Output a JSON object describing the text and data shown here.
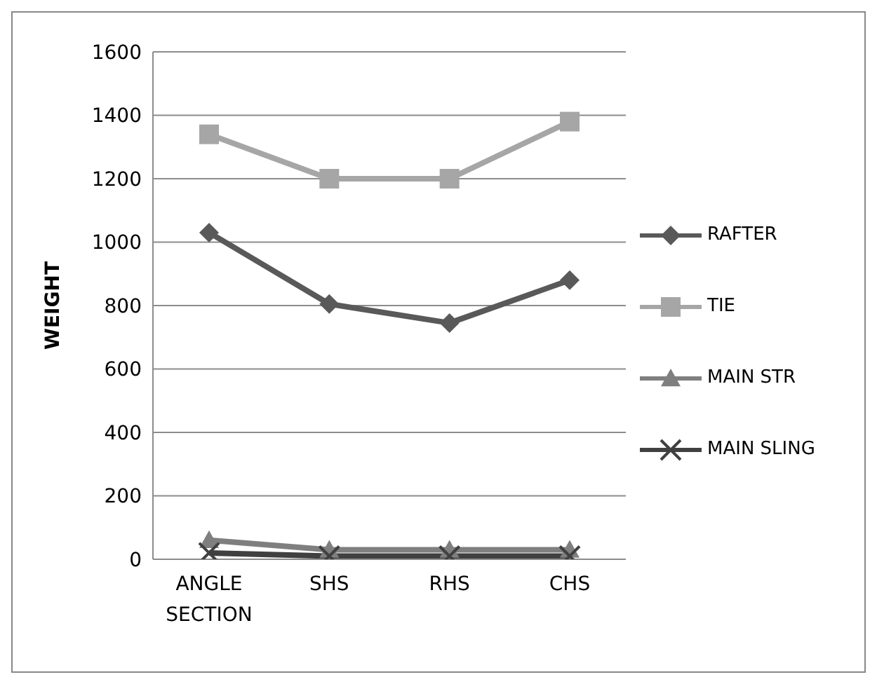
{
  "chart_data": {
    "type": "line",
    "ylabel": "WEIGHT",
    "categories": [
      "ANGLE SECTION",
      "SHS",
      "RHS",
      "CHS"
    ],
    "series": [
      {
        "name": "RAFTER",
        "color": "#595959",
        "marker": "diamond",
        "values": [
          1030,
          805,
          745,
          880
        ]
      },
      {
        "name": "TIE",
        "color": "#a6a6a6",
        "marker": "square",
        "values": [
          1340,
          1200,
          1200,
          1380
        ]
      },
      {
        "name": "MAIN STR",
        "color": "#7f7f7f",
        "marker": "triangle",
        "values": [
          60,
          30,
          30,
          30
        ]
      },
      {
        "name": "MAIN SLING",
        "color": "#404040",
        "marker": "cross",
        "values": [
          20,
          10,
          10,
          10
        ]
      }
    ],
    "ylim": [
      0,
      1600
    ],
    "yticks": [
      0,
      200,
      400,
      600,
      800,
      1000,
      1200,
      1400,
      1600
    ],
    "grid": "y",
    "legend": "right"
  }
}
